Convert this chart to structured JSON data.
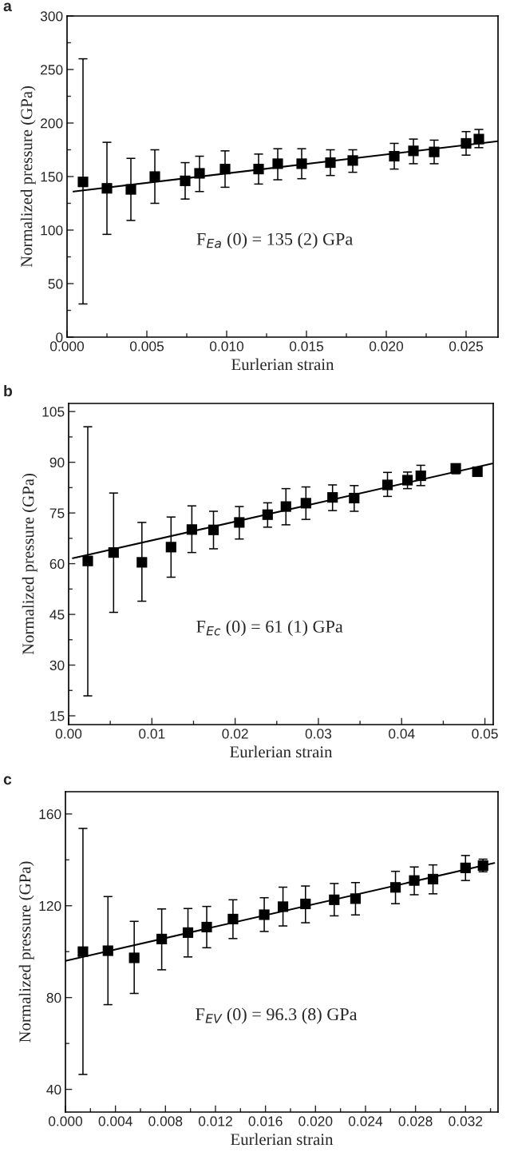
{
  "chart_data": [
    {
      "type": "scatter",
      "title": "a",
      "xlabel": "Eurlerian strain",
      "ylabel": "Normalized pressure (GPa)",
      "annotations": [
        "F$_{Ea}$ (0) = 135 (2) GPa"
      ],
      "xlim": [
        0,
        0.027
      ],
      "ylim": [
        0,
        300
      ],
      "xticks": [
        {
          "value": 0,
          "label": "0.000"
        },
        0.005,
        {
          "value": 0.01,
          "label": "0.010"
        },
        0.015,
        {
          "value": 0.02,
          "label": "0.020"
        },
        0.025
      ],
      "yticks": [
        0,
        50,
        100,
        150,
        200,
        250,
        300
      ],
      "grid": false,
      "legend": false,
      "series": [
        {
          "marker": "square",
          "color": "#000000",
          "x": [
            0.001,
            0.0025,
            0.004,
            0.0055,
            0.0074,
            0.0083,
            0.0099,
            0.012,
            0.0132,
            0.0147,
            0.0165,
            0.0179,
            0.0205,
            0.0217,
            0.023,
            0.025,
            0.0258
          ],
          "values": [
            145,
            139,
            138,
            150,
            146,
            153,
            157,
            157,
            162,
            162,
            163,
            165,
            169,
            174,
            173,
            181,
            185
          ],
          "errors": [
            [
              31,
              260
            ],
            [
              96,
              182
            ],
            [
              109,
              167
            ],
            [
              125,
              175
            ],
            [
              129,
              163
            ],
            [
              136,
              169
            ],
            [
              140,
              174
            ],
            [
              143,
              171
            ],
            [
              147,
              176
            ],
            [
              148,
              176
            ],
            [
              151,
              175
            ],
            [
              154,
              175
            ],
            [
              157,
              181
            ],
            [
              162,
              185
            ],
            [
              162,
              184
            ],
            [
              170,
              192
            ],
            [
              177,
              194
            ]
          ]
        },
        {
          "type": "line",
          "color": "#000000",
          "line_style": "solid",
          "x": [
            0.0004,
            0.027
          ],
          "values": [
            136,
            183
          ]
        }
      ]
    },
    {
      "type": "scatter",
      "title": "b",
      "xlabel": "Eurlerian strain",
      "ylabel": "Normalized pressure (GPa)",
      "annotations": [
        "F$_{Ec}$ (0) = 61 (1) GPa"
      ],
      "xlim": [
        0,
        0.051
      ],
      "ylim": [
        12.4,
        107.4
      ],
      "xticks": [
        {
          "value": 0,
          "label": "0.00"
        },
        0.01,
        0.02,
        0.03,
        0.04,
        0.05
      ],
      "yticks": [
        15,
        30,
        45,
        60,
        75,
        90,
        105
      ],
      "grid": false,
      "legend": false,
      "series": [
        {
          "marker": "square",
          "color": "#000000",
          "x": [
            0.0023,
            0.0054,
            0.0088,
            0.0123,
            0.0148,
            0.0174,
            0.0205,
            0.0239,
            0.0261,
            0.0285,
            0.0317,
            0.0343,
            0.0383,
            0.0407,
            0.0423,
            0.0465,
            0.0491
          ],
          "values": [
            60.8,
            63.3,
            60.4,
            64.9,
            70.1,
            70.0,
            72.2,
            74.5,
            76.9,
            77.9,
            79.6,
            79.4,
            83.3,
            84.7,
            86.0,
            88.2,
            87.2
          ],
          "errors": [
            [
              20.9,
              100.5
            ],
            [
              45.6,
              80.9
            ],
            [
              48.9,
              72.2
            ],
            [
              56.0,
              73.8
            ],
            [
              63.3,
              77.1
            ],
            [
              64.4,
              75.5
            ],
            [
              67.3,
              76.9
            ],
            [
              70.8,
              78.0
            ],
            [
              71.5,
              82.2
            ],
            [
              73.1,
              82.7
            ],
            [
              75.7,
              83.3
            ],
            [
              75.5,
              83.1
            ],
            [
              79.9,
              87.0
            ],
            [
              82.2,
              87.1
            ],
            [
              83.1,
              89.1
            ],
            [
              86.6,
              89.4
            ],
            [
              86.0,
              88.3
            ]
          ]
        },
        {
          "type": "line",
          "color": "#000000",
          "line_style": "solid",
          "x": [
            0.0005,
            0.051
          ],
          "values": [
            61.6,
            89.7
          ]
        }
      ]
    },
    {
      "type": "scatter",
      "title": "c",
      "xlabel": "Eurlerian strain",
      "ylabel": "Normalized pressure (GPa)",
      "annotations": [
        "F$_{EV}$ (0) = 96.3 (8) GPa"
      ],
      "xlim": [
        0,
        0.0346
      ],
      "ylim": [
        30.1,
        169.7
      ],
      "xticks": [
        {
          "value": 0,
          "label": "0.000"
        },
        0.004,
        0.008,
        0.012,
        0.016,
        {
          "value": 0.02,
          "label": "0.020"
        },
        0.024,
        0.028,
        0.032
      ],
      "yticks": [
        40,
        80,
        120,
        160
      ],
      "grid": false,
      "legend": false,
      "series": [
        {
          "marker": "square",
          "color": "#000000",
          "x": [
            0.0014,
            0.0034,
            0.0055,
            0.0077,
            0.0098,
            0.0113,
            0.0134,
            0.0159,
            0.0174,
            0.0192,
            0.0215,
            0.0232,
            0.0264,
            0.0279,
            0.0294,
            0.032,
            0.0334
          ],
          "values": [
            100.0,
            100.4,
            97.3,
            105.5,
            108.3,
            110.7,
            114.2,
            116.1,
            119.6,
            120.8,
            122.6,
            123.1,
            128.0,
            131.0,
            131.6,
            136.5,
            137.5
          ],
          "errors": [
            [
              46.5,
              153.7
            ],
            [
              76.9,
              124.0
            ],
            [
              81.8,
              113.2
            ],
            [
              92.1,
              118.6
            ],
            [
              97.7,
              118.8
            ],
            [
              101.7,
              119.7
            ],
            [
              105.7,
              122.6
            ],
            [
              108.8,
              123.5
            ],
            [
              111.2,
              128.1
            ],
            [
              112.6,
              128.6
            ],
            [
              115.6,
              129.7
            ],
            [
              116.0,
              130.1
            ],
            [
              120.9,
              135.0
            ],
            [
              124.8,
              136.9
            ],
            [
              125.2,
              137.8
            ],
            [
              131.0,
              141.9
            ],
            [
              134.8,
              140.3
            ]
          ]
        },
        {
          "type": "line",
          "color": "#000000",
          "line_style": "solid",
          "x": [
            0.0,
            0.0343
          ],
          "values": [
            96.0,
            138.6
          ]
        }
      ]
    }
  ]
}
